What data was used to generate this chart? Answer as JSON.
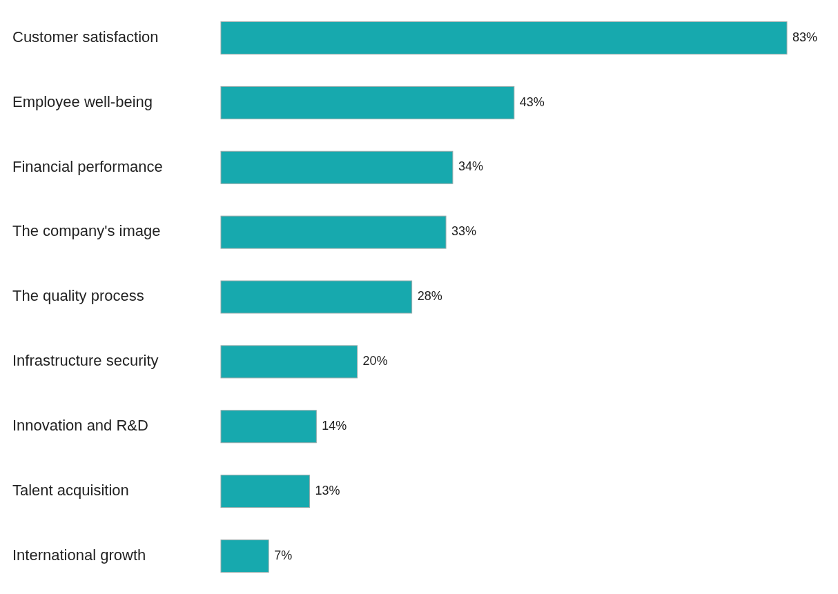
{
  "chart_data": {
    "type": "bar",
    "orientation": "horizontal",
    "categories": [
      "Customer satisfaction",
      "Employee well-being",
      "Financial performance",
      "The company's image",
      "The quality process",
      "Infrastructure security",
      "Innovation and R&D",
      "Talent acquisition",
      "International growth"
    ],
    "values": [
      83,
      43,
      34,
      33,
      28,
      20,
      14,
      13,
      7
    ],
    "value_labels": [
      "83%",
      "43%",
      "34%",
      "33%",
      "28%",
      "20%",
      "14%",
      "13%",
      "7%"
    ],
    "color": "#17a9ae"
  }
}
